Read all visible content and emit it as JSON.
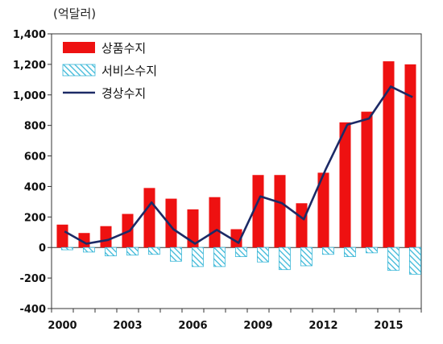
{
  "chart_data": {
    "type": "bar",
    "unit_label": "(억달러)",
    "x": [
      2000,
      2001,
      2002,
      2003,
      2004,
      2005,
      2006,
      2007,
      2008,
      2009,
      2010,
      2011,
      2012,
      2013,
      2014,
      2015,
      2016
    ],
    "x_tick_labels": [
      "2000",
      "2003",
      "2006",
      "2009",
      "2012",
      "2015"
    ],
    "ylim": [
      -400,
      1400
    ],
    "y_ticks": [
      -400,
      -200,
      0,
      200,
      400,
      600,
      800,
      1000,
      1200,
      1400
    ],
    "y_tick_labels": [
      "-400",
      "-200",
      "0",
      "200",
      "400",
      "600",
      "800",
      "1,000",
      "1,200",
      "1,400"
    ],
    "grid": false,
    "legend_position": "top-left",
    "series": [
      {
        "name": "상품수지",
        "kind": "bar",
        "color": "#ee1111",
        "values": [
          150,
          95,
          140,
          220,
          390,
          320,
          250,
          330,
          120,
          475,
          475,
          290,
          490,
          820,
          890,
          1220,
          1200
        ]
      },
      {
        "name": "서비스수지",
        "kind": "bar-hatched",
        "color": "#5cc8e0",
        "values": [
          -15,
          -30,
          -55,
          -50,
          -45,
          -90,
          -125,
          -125,
          -60,
          -95,
          -145,
          -120,
          -45,
          -60,
          -35,
          -150,
          -175
        ]
      },
      {
        "name": "경상수지",
        "kind": "line",
        "color": "#1c2a66",
        "values": [
          105,
          25,
          50,
          110,
          295,
          120,
          25,
          115,
          30,
          335,
          290,
          185,
          510,
          805,
          845,
          1055,
          985
        ]
      }
    ]
  }
}
